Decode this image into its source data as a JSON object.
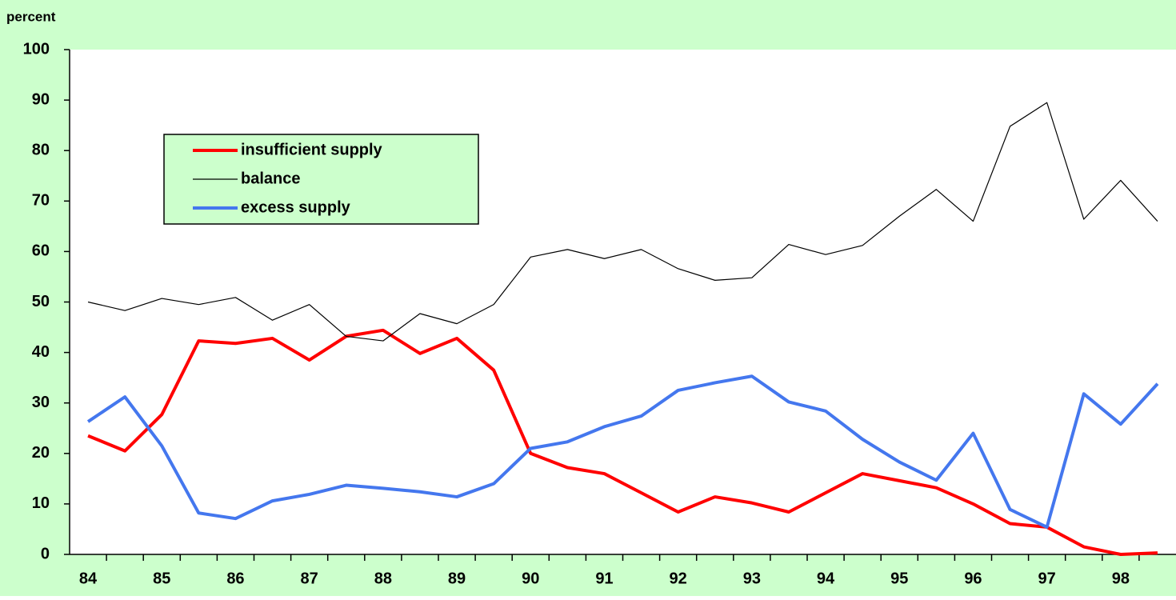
{
  "chart_data": {
    "type": "line",
    "y_label": "percent",
    "categories": [
      "84",
      null,
      "85",
      null,
      "86",
      null,
      "87",
      null,
      "88",
      null,
      "89",
      null,
      "90",
      null,
      "91",
      null,
      "92",
      null,
      "93",
      null,
      "94",
      null,
      "95",
      null,
      "96",
      null,
      "97",
      null,
      "98",
      null
    ],
    "series": [
      {
        "name": "insufficient supply",
        "color": "#ff0000",
        "width": 4,
        "values": [
          23.5,
          20.5,
          27.7,
          42.3,
          41.8,
          42.8,
          38.5,
          43.2,
          44.4,
          39.8,
          42.8,
          36.5,
          20.0,
          17.2,
          16.0,
          12.2,
          8.4,
          11.4,
          10.2,
          8.4,
          12.2,
          16.0,
          14.6,
          13.2,
          10.0,
          6.1,
          5.4,
          1.5,
          0,
          0.3
        ]
      },
      {
        "name": "balance",
        "color": "#000000",
        "width": 1.2,
        "values": [
          50.0,
          48.3,
          50.7,
          49.5,
          50.9,
          46.4,
          49.5,
          43.2,
          42.3,
          47.7,
          45.7,
          49.5,
          58.9,
          60.4,
          58.6,
          60.4,
          56.6,
          54.3,
          54.8,
          61.4,
          59.4,
          61.2,
          67.0,
          72.3,
          66.0,
          84.8,
          89.5,
          66.4,
          74.1,
          66.0
        ]
      },
      {
        "name": "excess supply",
        "color": "#4477ee",
        "width": 4,
        "values": [
          26.3,
          31.2,
          21.5,
          8.2,
          7.1,
          10.6,
          11.9,
          13.7,
          13.1,
          12.4,
          11.4,
          14.0,
          21.0,
          22.3,
          25.3,
          27.4,
          32.5,
          34.0,
          35.3,
          30.2,
          28.4,
          22.8,
          18.3,
          14.7,
          24.0,
          8.9,
          5.4,
          31.8,
          25.8,
          33.8
        ]
      }
    ],
    "ylim": [
      0,
      100
    ],
    "yticks": [
      0,
      10,
      20,
      30,
      40,
      50,
      60,
      70,
      80,
      90,
      100
    ],
    "grid": false,
    "legend": "upper left",
    "background": "#ccffcc",
    "plot_background": "#ffffff"
  }
}
